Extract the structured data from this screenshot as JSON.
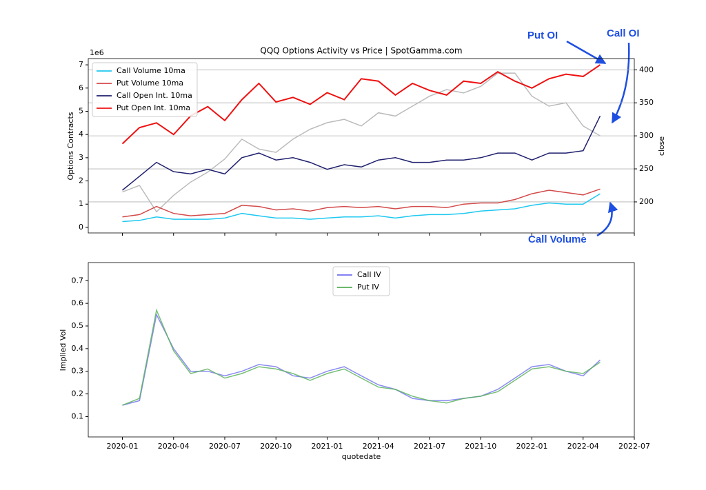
{
  "chart_data": [
    {
      "type": "line",
      "title": "QQQ Options Activity vs Price  | SpotGamma.com",
      "ylabel": "Options Contracts",
      "y2label": "close",
      "offset_text": "1e6",
      "legend": "upper left",
      "grid": "y2",
      "x": [
        "2020-01",
        "2020-02",
        "2020-03",
        "2020-04",
        "2020-05",
        "2020-06",
        "2020-07",
        "2020-08",
        "2020-09",
        "2020-10",
        "2020-11",
        "2020-12",
        "2021-01",
        "2021-02",
        "2021-03",
        "2021-04",
        "2021-05",
        "2021-06",
        "2021-07",
        "2021-08",
        "2021-09",
        "2021-10",
        "2021-11",
        "2021-12",
        "2022-01",
        "2022-02",
        "2022-03",
        "2022-04",
        "2022-05"
      ],
      "xlim": [
        "2019-11",
        "2022-07"
      ],
      "ylim": [
        -0.24,
        7.27
      ],
      "yticks": [
        0,
        1,
        2,
        3,
        4,
        5,
        6,
        7
      ],
      "y2lim": [
        153,
        417
      ],
      "y2ticks": [
        200,
        250,
        300,
        350,
        400
      ],
      "series": [
        {
          "name": "Call Volume 10ma",
          "color": "#1ec8f0",
          "values": [
            0.25,
            0.3,
            0.45,
            0.35,
            0.35,
            0.35,
            0.4,
            0.6,
            0.5,
            0.4,
            0.4,
            0.35,
            0.4,
            0.45,
            0.45,
            0.5,
            0.4,
            0.5,
            0.55,
            0.55,
            0.6,
            0.7,
            0.75,
            0.8,
            0.95,
            1.05,
            1.0,
            1.0,
            1.45
          ]
        },
        {
          "name": "Put Volume 10ma",
          "color": "#d44a4a",
          "values": [
            0.45,
            0.55,
            0.9,
            0.6,
            0.5,
            0.55,
            0.6,
            0.95,
            0.9,
            0.75,
            0.8,
            0.7,
            0.85,
            0.9,
            0.85,
            0.9,
            0.8,
            0.9,
            0.9,
            0.85,
            1.0,
            1.05,
            1.05,
            1.2,
            1.45,
            1.6,
            1.5,
            1.4,
            1.65
          ]
        },
        {
          "name": "Call Open Int. 10ma",
          "color": "#1f1f6e",
          "values": [
            1.6,
            2.2,
            2.8,
            2.4,
            2.3,
            2.5,
            2.3,
            3.0,
            3.2,
            2.9,
            3.0,
            2.8,
            2.5,
            2.7,
            2.6,
            2.9,
            3.0,
            2.8,
            2.8,
            2.9,
            2.9,
            3.0,
            3.2,
            3.2,
            2.9,
            3.2,
            3.2,
            3.3,
            4.8
          ]
        },
        {
          "name": "Put Open Int. 10ma",
          "color": "#ee1111",
          "values": [
            3.6,
            4.3,
            4.5,
            4.0,
            4.8,
            5.2,
            4.6,
            5.5,
            6.2,
            5.4,
            5.6,
            5.3,
            5.8,
            5.5,
            6.4,
            6.3,
            5.7,
            6.2,
            5.9,
            5.7,
            6.3,
            6.2,
            6.7,
            6.3,
            6.0,
            6.4,
            6.6,
            6.5,
            7.0
          ]
        },
        {
          "color": "#bbbbbb",
          "axis": "y2",
          "values": [
            215,
            225,
            185,
            210,
            230,
            245,
            265,
            295,
            280,
            275,
            295,
            310,
            320,
            325,
            315,
            335,
            330,
            345,
            360,
            370,
            365,
            375,
            395,
            395,
            360,
            345,
            350,
            315,
            300
          ]
        }
      ],
      "annotations": [
        "Put OI",
        "Call OI",
        "Call Volume"
      ]
    },
    {
      "type": "line",
      "ylabel": "Implied Vol",
      "xlabel": "quotedate",
      "legend": "upper center",
      "x": [
        "2020-01",
        "2020-02",
        "2020-03",
        "2020-04",
        "2020-05",
        "2020-06",
        "2020-07",
        "2020-08",
        "2020-09",
        "2020-10",
        "2020-11",
        "2020-12",
        "2021-01",
        "2021-02",
        "2021-03",
        "2021-04",
        "2021-05",
        "2021-06",
        "2021-07",
        "2021-08",
        "2021-09",
        "2021-10",
        "2021-11",
        "2021-12",
        "2022-01",
        "2022-02",
        "2022-03",
        "2022-04",
        "2022-05"
      ],
      "xlim": [
        "2019-11",
        "2022-07"
      ],
      "xticks": [
        "2020-01",
        "2020-04",
        "2020-07",
        "2020-10",
        "2021-01",
        "2021-04",
        "2021-07",
        "2021-10",
        "2022-01",
        "2022-04",
        "2022-07"
      ],
      "ylim": [
        0.01,
        0.78
      ],
      "yticks": [
        0.1,
        0.2,
        0.3,
        0.4,
        0.5,
        0.6,
        0.7
      ],
      "series": [
        {
          "name": "Call IV",
          "color": "#6f6ff0",
          "values": [
            0.15,
            0.17,
            0.55,
            0.4,
            0.3,
            0.3,
            0.28,
            0.3,
            0.33,
            0.32,
            0.28,
            0.27,
            0.3,
            0.32,
            0.28,
            0.24,
            0.22,
            0.18,
            0.17,
            0.17,
            0.18,
            0.19,
            0.22,
            0.27,
            0.32,
            0.33,
            0.3,
            0.28,
            0.35
          ]
        },
        {
          "name": "Put IV",
          "color": "#55b055",
          "values": [
            0.15,
            0.18,
            0.57,
            0.39,
            0.29,
            0.31,
            0.27,
            0.29,
            0.32,
            0.31,
            0.29,
            0.26,
            0.29,
            0.31,
            0.27,
            0.23,
            0.22,
            0.19,
            0.17,
            0.16,
            0.18,
            0.19,
            0.21,
            0.26,
            0.31,
            0.32,
            0.3,
            0.29,
            0.34
          ]
        }
      ]
    }
  ]
}
